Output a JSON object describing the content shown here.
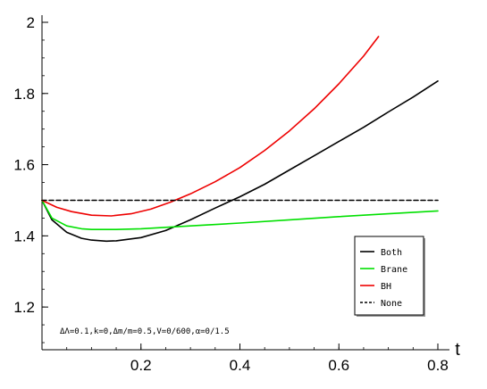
{
  "chart_data": {
    "type": "line",
    "title": "",
    "xlabel": "t",
    "ylabel": "",
    "xlim": [
      0,
      0.8
    ],
    "ylim": [
      1.08,
      2.0
    ],
    "x_ticks": [
      0.2,
      0.4,
      0.6,
      0.8
    ],
    "x_tick_labels": [
      "0.2",
      "0.4",
      "0.6",
      "0.8"
    ],
    "y_ticks": [
      1.2,
      1.4,
      1.6,
      1.8,
      2.0
    ],
    "y_tick_labels": [
      "1.2",
      "1.4",
      "1.6",
      "1.8",
      "2"
    ],
    "grid": false,
    "legend_position": "right",
    "annotation": "ΔΛ=0.1,k=0,Δm/m=0.5,V=0/600,α=0/1.5",
    "series": [
      {
        "name": "Both",
        "color": "#000000",
        "style": "solid",
        "x": [
          0,
          0.02,
          0.05,
          0.08,
          0.1,
          0.13,
          0.15,
          0.2,
          0.25,
          0.3,
          0.35,
          0.4,
          0.45,
          0.5,
          0.55,
          0.6,
          0.65,
          0.7,
          0.75,
          0.8
        ],
        "y": [
          1.5,
          1.445,
          1.41,
          1.393,
          1.388,
          1.385,
          1.386,
          1.395,
          1.415,
          1.445,
          1.478,
          1.51,
          1.545,
          1.585,
          1.625,
          1.665,
          1.705,
          1.748,
          1.79,
          1.835
        ]
      },
      {
        "name": "Brane",
        "color": "#00e000",
        "style": "solid",
        "x": [
          0,
          0.02,
          0.05,
          0.08,
          0.1,
          0.15,
          0.2,
          0.3,
          0.4,
          0.5,
          0.6,
          0.7,
          0.8
        ],
        "y": [
          1.5,
          1.45,
          1.428,
          1.42,
          1.418,
          1.418,
          1.42,
          1.428,
          1.436,
          1.445,
          1.454,
          1.462,
          1.47
        ]
      },
      {
        "name": "BH",
        "color": "#ee0000",
        "style": "solid",
        "x": [
          0,
          0.03,
          0.06,
          0.1,
          0.14,
          0.18,
          0.22,
          0.26,
          0.3,
          0.35,
          0.4,
          0.45,
          0.5,
          0.55,
          0.6,
          0.65,
          0.68
        ],
        "y": [
          1.5,
          1.48,
          1.468,
          1.458,
          1.456,
          1.462,
          1.475,
          1.495,
          1.518,
          1.552,
          1.592,
          1.64,
          1.695,
          1.757,
          1.827,
          1.905,
          1.96
        ]
      },
      {
        "name": "None",
        "color": "#000000",
        "style": "dashed",
        "x": [
          0,
          0.8
        ],
        "y": [
          1.5,
          1.5
        ]
      }
    ]
  }
}
